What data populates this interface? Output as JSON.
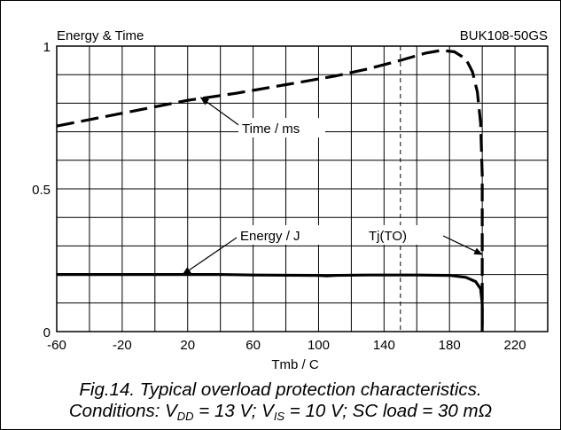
{
  "chart_data": {
    "type": "line",
    "title_left": "Energy & Time",
    "title_right": "BUK108-50GS",
    "xlabel": "Tmb / C",
    "ylabel": "",
    "xlim": [
      -60,
      240
    ],
    "ylim": [
      0,
      1
    ],
    "x_ticks": [
      -60,
      -20,
      20,
      60,
      100,
      140,
      180,
      220
    ],
    "y_ticks": [
      0,
      0.5,
      1
    ],
    "y_tick_labels": [
      "0",
      "0.5",
      "1"
    ],
    "grid": true,
    "reference_x": 150,
    "series": [
      {
        "name": "Time / ms",
        "style": "dashed",
        "points": [
          [
            -60,
            0.72
          ],
          [
            -20,
            0.765
          ],
          [
            20,
            0.81
          ],
          [
            50,
            0.835
          ],
          [
            80,
            0.865
          ],
          [
            110,
            0.895
          ],
          [
            130,
            0.92
          ],
          [
            150,
            0.95
          ],
          [
            165,
            0.975
          ],
          [
            175,
            0.985
          ],
          [
            183,
            0.98
          ],
          [
            190,
            0.955
          ],
          [
            194,
            0.91
          ],
          [
            197,
            0.84
          ],
          [
            199,
            0.73
          ],
          [
            200,
            0.55
          ],
          [
            200,
            0
          ]
        ]
      },
      {
        "name": "Energy / J",
        "style": "solid",
        "points": [
          [
            -60,
            0.2
          ],
          [
            0,
            0.2
          ],
          [
            40,
            0.2
          ],
          [
            60,
            0.198
          ],
          [
            100,
            0.197
          ],
          [
            105,
            0.195
          ],
          [
            110,
            0.197
          ],
          [
            130,
            0.198
          ],
          [
            160,
            0.198
          ],
          [
            180,
            0.197
          ],
          [
            190,
            0.19
          ],
          [
            196,
            0.175
          ],
          [
            199,
            0.15
          ],
          [
            200,
            0.1
          ],
          [
            200,
            0
          ]
        ]
      }
    ],
    "annotations": [
      {
        "text": "Time / ms",
        "points_to": [
          28,
          0.82
        ]
      },
      {
        "text": "Energy / J",
        "points_to": [
          17,
          0.2
        ]
      },
      {
        "text": "Tj(TO)",
        "points_to": [
          200,
          0.27
        ]
      }
    ]
  },
  "caption": {
    "line1": "Fig.14.   Typical overload protection characteristics.",
    "line2_parts": {
      "p1": "Conditions: V",
      "s1": "DD",
      "p2": " = 13 V; V",
      "s2": "IS",
      "p3": " = 10 V; SC load = 30 mΩ"
    }
  }
}
